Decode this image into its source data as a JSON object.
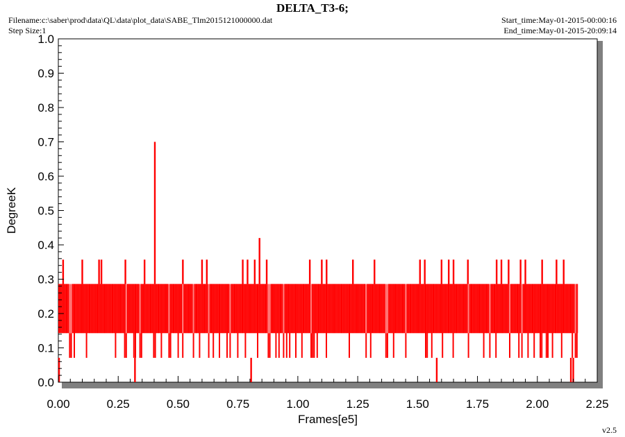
{
  "header": {
    "title": "DELTA_T3-6;",
    "filename": "Filename:c:\\saber\\prod\\data\\QL\\data\\plot_data\\SABE_Tlm2015121000000.dat",
    "step_size": "Step Size:1",
    "start_time": "Start_time:May-01-2015-00:00:16",
    "end_time": "End_time:May-01-2015-20:09:14"
  },
  "footer": {
    "version": "v2.5"
  },
  "colors": {
    "series": "#ff0000",
    "frame": "#000000",
    "shadow": "#808080"
  },
  "chart_data": {
    "type": "line",
    "title": "DELTA_T3-6;",
    "xlabel": "Frames[e5]",
    "ylabel": "DegreeK",
    "xlim": [
      0.0,
      2.25
    ],
    "ylim": [
      0.0,
      1.0
    ],
    "x_ticks": [
      "0.00",
      "0.25",
      "0.50",
      "0.75",
      "1.00",
      "1.25",
      "1.50",
      "1.75",
      "2.00",
      "2.25"
    ],
    "y_ticks": [
      "0.0",
      "0.1",
      "0.2",
      "0.3",
      "0.4",
      "0.5",
      "0.6",
      "0.7",
      "0.8",
      "0.9",
      "1.0"
    ],
    "grid": false,
    "series": [
      {
        "band_range": [
          0.0,
          2.17
        ],
        "levels": [
          0.071,
          0.143,
          0.214,
          0.286,
          0.357
        ],
        "dense_band": [
          0.143,
          0.286
        ],
        "spikes_up": [
          {
            "x": 0.02,
            "y": 0.357
          },
          {
            "x": 0.1,
            "y": 0.357
          },
          {
            "x": 0.17,
            "y": 0.357
          },
          {
            "x": 0.18,
            "y": 0.357
          },
          {
            "x": 0.28,
            "y": 0.357
          },
          {
            "x": 0.36,
            "y": 0.357
          },
          {
            "x": 0.403,
            "y": 0.7
          },
          {
            "x": 0.52,
            "y": 0.357
          },
          {
            "x": 0.6,
            "y": 0.357
          },
          {
            "x": 0.62,
            "y": 0.357
          },
          {
            "x": 0.77,
            "y": 0.357
          },
          {
            "x": 0.79,
            "y": 0.357
          },
          {
            "x": 0.82,
            "y": 0.357
          },
          {
            "x": 0.84,
            "y": 0.42
          },
          {
            "x": 0.87,
            "y": 0.357
          },
          {
            "x": 1.05,
            "y": 0.357
          },
          {
            "x": 1.1,
            "y": 0.357
          },
          {
            "x": 1.12,
            "y": 0.357
          },
          {
            "x": 1.23,
            "y": 0.357
          },
          {
            "x": 1.32,
            "y": 0.357
          },
          {
            "x": 1.51,
            "y": 0.357
          },
          {
            "x": 1.53,
            "y": 0.357
          },
          {
            "x": 1.6,
            "y": 0.357
          },
          {
            "x": 1.63,
            "y": 0.357
          },
          {
            "x": 1.65,
            "y": 0.357
          },
          {
            "x": 1.71,
            "y": 0.357
          },
          {
            "x": 1.83,
            "y": 0.357
          },
          {
            "x": 1.85,
            "y": 0.357
          },
          {
            "x": 1.88,
            "y": 0.357
          },
          {
            "x": 1.93,
            "y": 0.357
          },
          {
            "x": 1.95,
            "y": 0.357
          },
          {
            "x": 2.02,
            "y": 0.357
          },
          {
            "x": 2.08,
            "y": 0.357
          },
          {
            "x": 2.11,
            "y": 0.357
          }
        ],
        "spikes_down": [
          {
            "x": 0.003,
            "y": 0.0
          },
          {
            "x": 0.32,
            "y": 0.0
          },
          {
            "x": 0.805,
            "y": 0.0
          },
          {
            "x": 1.58,
            "y": 0.0
          },
          {
            "x": 2.14,
            "y": 0.0
          },
          {
            "x": 2.15,
            "y": 0.0
          }
        ]
      }
    ]
  }
}
